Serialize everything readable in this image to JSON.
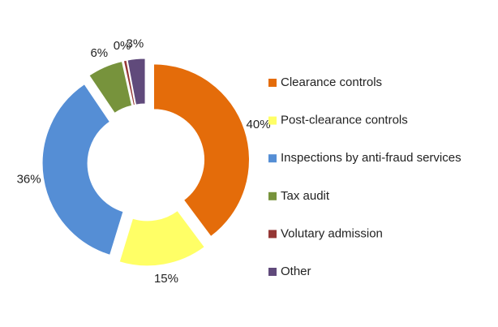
{
  "chart_data": {
    "type": "donut",
    "categories": [
      "Clearance controls",
      "Post-clearance controls",
      "Inspections by anti-fraud services",
      "Tax audit",
      "Volutary admission",
      "Other"
    ],
    "values": [
      40,
      15,
      36,
      6,
      0.5,
      3
    ],
    "value_labels": [
      "40%",
      "15%",
      "36%",
      "6%",
      "0%",
      "3%"
    ],
    "colors": [
      "#e46c0a",
      "#ffff66",
      "#558ed5",
      "#77933c",
      "#953735",
      "#604a7b"
    ],
    "legend": "right"
  }
}
